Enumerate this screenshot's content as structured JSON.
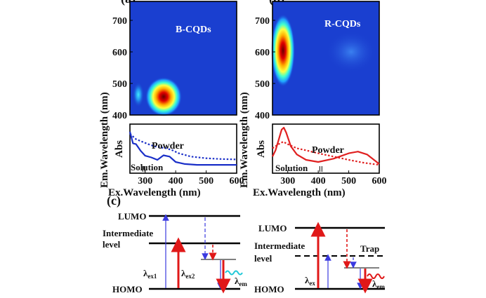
{
  "panels": {
    "a_label": "(a)",
    "b_label": "(b)",
    "c_label": "(c)"
  },
  "panel_a": {
    "map_label": "B-CQDs",
    "abs_label": "Abs",
    "powder_label": "Powder",
    "solution_label": "Solution"
  },
  "panel_b": {
    "map_label": "R-CQDs",
    "abs_label": "Abs",
    "powder_label": "Powder",
    "solution_label": "Solution"
  },
  "axes": {
    "ylabel": "Em.Wavelength (nm)",
    "xlabel": "Ex.Wavelength (nm)"
  },
  "panel_c": {
    "left": {
      "lumo": "LUMO",
      "intermediate_1": "Intermediate",
      "intermediate_2": "level",
      "homo": "HOMO",
      "lambda": "λ",
      "ex1_sub": "ex1",
      "ex2_sub": "ex2",
      "em_sub": "em"
    },
    "right": {
      "lumo": "LUMO",
      "intermediate_1": "Intermediate",
      "intermediate_2": "level",
      "trap": "Trap",
      "homo": "HOMO",
      "lambda": "λ",
      "ex_sub": "ex",
      "em_sub": "em"
    }
  },
  "colors": {
    "map_bg": "#1a3fd0",
    "blue_line": "#1a2fc8",
    "red_line": "#e02020",
    "arrow_blue": "#3a3ae0",
    "arrow_red": "#e01818",
    "wave_cyan": "#22c8d8"
  },
  "chart_data": [
    {
      "type": "heatmap",
      "panel": "a",
      "title": "B-CQDs",
      "xlabel": "Ex.Wavelength (nm)",
      "ylabel": "Em.Wavelength (nm)",
      "xlim": [
        250,
        600
      ],
      "ylim": [
        400,
        760
      ],
      "y_ticks": [
        400,
        500,
        600,
        700
      ],
      "peaks": [
        {
          "ex": 370,
          "em": 460,
          "intensity": 1.0
        },
        {
          "ex": 262,
          "em": 455,
          "intensity": 0.45
        }
      ]
    },
    {
      "type": "line",
      "panel": "a",
      "xlabel": "Ex.Wavelength (nm)",
      "ylabel": "Abs",
      "xlim": [
        250,
        600
      ],
      "x_ticks": [
        300,
        400,
        500,
        600
      ],
      "series": [
        {
          "name": "Powder",
          "style": "dotted",
          "x": [
            250,
            270,
            290,
            310,
            330,
            350,
            370,
            390,
            410,
            450,
            500,
            550,
            600
          ],
          "y": [
            0.85,
            0.72,
            0.66,
            0.6,
            0.55,
            0.52,
            0.5,
            0.45,
            0.38,
            0.3,
            0.26,
            0.24,
            0.23
          ]
        },
        {
          "name": "Solution",
          "style": "solid",
          "x": [
            250,
            260,
            270,
            285,
            300,
            320,
            340,
            360,
            380,
            400,
            430,
            470,
            520,
            600
          ],
          "y": [
            0.9,
            0.62,
            0.6,
            0.44,
            0.32,
            0.28,
            0.22,
            0.33,
            0.3,
            0.17,
            0.12,
            0.1,
            0.1,
            0.1
          ]
        }
      ]
    },
    {
      "type": "heatmap",
      "panel": "b",
      "title": "R-CQDs",
      "xlabel": "Ex.Wavelength (nm)",
      "ylabel": "Em.Wavelength (nm)",
      "xlim": [
        250,
        600
      ],
      "ylim": [
        400,
        760
      ],
      "y_ticks": [
        400,
        500,
        600,
        700
      ],
      "peaks": [
        {
          "ex": 285,
          "em": 615,
          "intensity": 1.0
        },
        {
          "ex": 520,
          "em": 630,
          "intensity": 0.2
        }
      ]
    },
    {
      "type": "line",
      "panel": "b",
      "xlabel": "Ex.Wavelength (nm)",
      "ylabel": "Abs",
      "xlim": [
        250,
        600
      ],
      "x_ticks": [
        300,
        400,
        500,
        600
      ],
      "series": [
        {
          "name": "Powder",
          "style": "dotted",
          "x": [
            250,
            270,
            285,
            300,
            330,
            360,
            400,
            450,
            500,
            550,
            600
          ],
          "y": [
            0.5,
            0.6,
            0.66,
            0.6,
            0.5,
            0.45,
            0.38,
            0.3,
            0.22,
            0.15,
            0.1
          ]
        },
        {
          "name": "Solution",
          "style": "solid",
          "x": [
            250,
            260,
            270,
            280,
            287,
            295,
            310,
            330,
            360,
            400,
            450,
            500,
            530,
            560,
            600
          ],
          "y": [
            0.3,
            0.45,
            0.7,
            0.95,
            1.0,
            0.88,
            0.55,
            0.35,
            0.22,
            0.17,
            0.25,
            0.38,
            0.42,
            0.35,
            0.12
          ]
        }
      ]
    }
  ]
}
